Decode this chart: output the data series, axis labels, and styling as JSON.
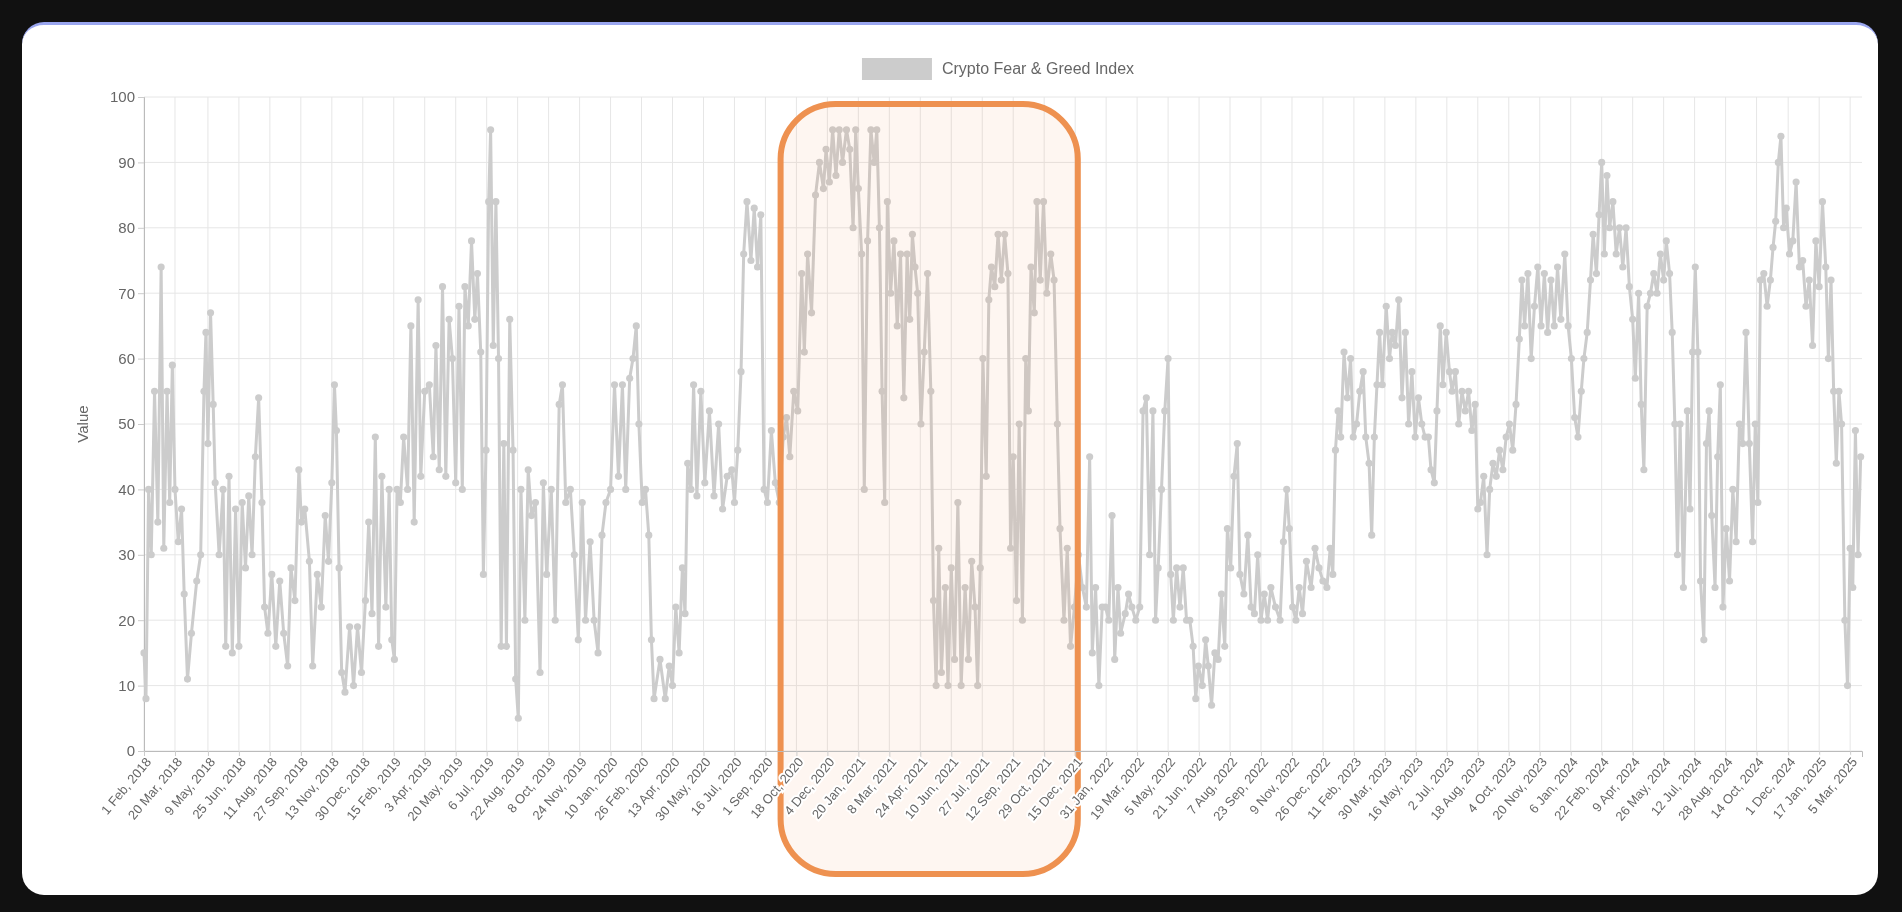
{
  "chart_data": {
    "type": "line",
    "ylabel": "Value",
    "legend": "top",
    "grid": true,
    "marker": "circle",
    "line_style": "solid",
    "xlim": [
      "2018-02-01",
      "2025-03-23"
    ],
    "bands": [
      {
        "axis": "x",
        "from": "2020-09-24",
        "to": "2021-12-19",
        "color": "#ee9150"
      }
    ],
    "ylim": [
      0,
      100
    ],
    "yticks": [
      0,
      10,
      20,
      30,
      40,
      50,
      60,
      70,
      80,
      90,
      100
    ],
    "xticks": [
      {
        "value": "2018-02-01",
        "label": "1 Feb, 2018"
      },
      {
        "value": "2018-03-20",
        "label": "20 Mar, 2018"
      },
      {
        "value": "2018-05-09",
        "label": "9 May, 2018"
      },
      {
        "value": "2018-06-25",
        "label": "25 Jun, 2018"
      },
      {
        "value": "2018-08-11",
        "label": "11 Aug, 2018"
      },
      {
        "value": "2018-09-27",
        "label": "27 Sep, 2018"
      },
      {
        "value": "2018-11-13",
        "label": "13 Nov, 2018"
      },
      {
        "value": "2018-12-30",
        "label": "30 Dec, 2018"
      },
      {
        "value": "2019-02-15",
        "label": "15 Feb, 2019"
      },
      {
        "value": "2019-04-03",
        "label": "3 Apr, 2019"
      },
      {
        "value": "2019-05-20",
        "label": "20 May, 2019"
      },
      {
        "value": "2019-07-06",
        "label": "6 Jul, 2019"
      },
      {
        "value": "2019-08-22",
        "label": "22 Aug, 2019"
      },
      {
        "value": "2019-10-08",
        "label": "8 Oct, 2019"
      },
      {
        "value": "2019-11-24",
        "label": "24 Nov, 2019"
      },
      {
        "value": "2020-01-10",
        "label": "10 Jan, 2020"
      },
      {
        "value": "2020-02-26",
        "label": "26 Feb, 2020"
      },
      {
        "value": "2020-04-13",
        "label": "13 Apr, 2020"
      },
      {
        "value": "2020-05-30",
        "label": "30 May, 2020"
      },
      {
        "value": "2020-07-16",
        "label": "16 Jul, 2020"
      },
      {
        "value": "2020-09-01",
        "label": "1 Sep, 2020"
      },
      {
        "value": "2020-10-18",
        "label": "18 Oct, 2020"
      },
      {
        "value": "2020-12-04",
        "label": "4 Dec, 2020"
      },
      {
        "value": "2021-01-20",
        "label": "20 Jan, 2021"
      },
      {
        "value": "2021-03-08",
        "label": "8 Mar, 2021"
      },
      {
        "value": "2021-04-24",
        "label": "24 Apr, 2021"
      },
      {
        "value": "2021-06-10",
        "label": "10 Jun, 2021"
      },
      {
        "value": "2021-07-27",
        "label": "27 Jul, 2021"
      },
      {
        "value": "2021-09-12",
        "label": "12 Sep, 2021"
      },
      {
        "value": "2021-10-29",
        "label": "29 Oct, 2021"
      },
      {
        "value": "2021-12-15",
        "label": "15 Dec, 2021"
      },
      {
        "value": "2022-01-31",
        "label": "31 Jan, 2022"
      },
      {
        "value": "2022-03-19",
        "label": "19 Mar, 2022"
      },
      {
        "value": "2022-05-05",
        "label": "5 May, 2022"
      },
      {
        "value": "2022-06-21",
        "label": "21 Jun, 2022"
      },
      {
        "value": "2022-08-07",
        "label": "7 Aug, 2022"
      },
      {
        "value": "2022-09-23",
        "label": "23 Sep, 2022"
      },
      {
        "value": "2022-11-09",
        "label": "9 Nov, 2022"
      },
      {
        "value": "2022-12-26",
        "label": "26 Dec, 2022"
      },
      {
        "value": "2023-02-11",
        "label": "11 Feb, 2023"
      },
      {
        "value": "2023-03-30",
        "label": "30 Mar, 2023"
      },
      {
        "value": "2023-05-16",
        "label": "16 May, 2023"
      },
      {
        "value": "2023-07-02",
        "label": "2 Jul, 2023"
      },
      {
        "value": "2023-08-18",
        "label": "18 Aug, 2023"
      },
      {
        "value": "2023-10-04",
        "label": "4 Oct, 2023"
      },
      {
        "value": "2023-11-20",
        "label": "20 Nov, 2023"
      },
      {
        "value": "2024-01-06",
        "label": "6 Jan, 2024"
      },
      {
        "value": "2024-02-22",
        "label": "22 Feb, 2024"
      },
      {
        "value": "2024-04-09",
        "label": "9 Apr, 2024"
      },
      {
        "value": "2024-05-26",
        "label": "26 May, 2024"
      },
      {
        "value": "2024-07-12",
        "label": "12 Jul, 2024"
      },
      {
        "value": "2024-08-28",
        "label": "28 Aug, 2024"
      },
      {
        "value": "2024-10-14",
        "label": "14 Oct, 2024"
      },
      {
        "value": "2024-12-01",
        "label": "1 Dec, 2024"
      },
      {
        "value": "2025-01-17",
        "label": "17 Jan, 2025"
      },
      {
        "value": "2025-03-05",
        "label": "5 Mar, 2025"
      }
    ],
    "series": [
      {
        "name": "Crypto Fear & Greed Index",
        "color": "#cccccc",
        "x": [
          "2018-02-01",
          "2018-02-04",
          "2018-02-08",
          "2018-02-12",
          "2018-02-17",
          "2018-02-22",
          "2018-02-27",
          "2018-03-03",
          "2018-03-08",
          "2018-03-12",
          "2018-03-16",
          "2018-03-20",
          "2018-03-25",
          "2018-03-30",
          "2018-04-03",
          "2018-04-08",
          "2018-04-14",
          "2018-04-22",
          "2018-04-28",
          "2018-05-03",
          "2018-05-06",
          "2018-05-09",
          "2018-05-13",
          "2018-05-17",
          "2018-05-20",
          "2018-05-26",
          "2018-06-01",
          "2018-06-05",
          "2018-06-10",
          "2018-06-15",
          "2018-06-20",
          "2018-06-25",
          "2018-06-30",
          "2018-07-05",
          "2018-07-10",
          "2018-07-15",
          "2018-07-20",
          "2018-07-25",
          "2018-07-30",
          "2018-08-03",
          "2018-08-08",
          "2018-08-14",
          "2018-08-20",
          "2018-08-26",
          "2018-09-01",
          "2018-09-07",
          "2018-09-12",
          "2018-09-18",
          "2018-09-24",
          "2018-09-28",
          "2018-10-03",
          "2018-10-10",
          "2018-10-15",
          "2018-10-22",
          "2018-10-28",
          "2018-11-03",
          "2018-11-08",
          "2018-11-13",
          "2018-11-17",
          "2018-11-20",
          "2018-11-24",
          "2018-11-28",
          "2018-12-03",
          "2018-12-10",
          "2018-12-16",
          "2018-12-22",
          "2018-12-28",
          "2019-01-03",
          "2019-01-08",
          "2019-01-13",
          "2019-01-18",
          "2019-01-23",
          "2019-01-28",
          "2019-02-03",
          "2019-02-08",
          "2019-02-12",
          "2019-02-16",
          "2019-02-20",
          "2019-02-25",
          "2019-03-02",
          "2019-03-08",
          "2019-03-13",
          "2019-03-18",
          "2019-03-24",
          "2019-03-28",
          "2019-04-03",
          "2019-04-10",
          "2019-04-16",
          "2019-04-20",
          "2019-04-25",
          "2019-04-30",
          "2019-05-05",
          "2019-05-10",
          "2019-05-15",
          "2019-05-20",
          "2019-05-25",
          "2019-05-30",
          "2019-06-03",
          "2019-06-08",
          "2019-06-13",
          "2019-06-18",
          "2019-06-22",
          "2019-06-27",
          "2019-07-01",
          "2019-07-05",
          "2019-07-09",
          "2019-07-12",
          "2019-07-16",
          "2019-07-20",
          "2019-07-24",
          "2019-07-28",
          "2019-08-01",
          "2019-08-05",
          "2019-08-10",
          "2019-08-15",
          "2019-08-19",
          "2019-08-23",
          "2019-08-27",
          "2019-09-02",
          "2019-09-07",
          "2019-09-12",
          "2019-09-18",
          "2019-09-25",
          "2019-09-30",
          "2019-10-05",
          "2019-10-12",
          "2019-10-18",
          "2019-10-24",
          "2019-10-29",
          "2019-11-03",
          "2019-11-10",
          "2019-11-16",
          "2019-11-22",
          "2019-11-28",
          "2019-12-03",
          "2019-12-10",
          "2019-12-16",
          "2019-12-22",
          "2019-12-28",
          "2020-01-03",
          "2020-01-10",
          "2020-01-16",
          "2020-01-22",
          "2020-01-28",
          "2020-02-02",
          "2020-02-08",
          "2020-02-13",
          "2020-02-18",
          "2020-02-22",
          "2020-02-27",
          "2020-03-03",
          "2020-03-08",
          "2020-03-12",
          "2020-03-16",
          "2020-03-25",
          "2020-04-02",
          "2020-04-08",
          "2020-04-13",
          "2020-04-18",
          "2020-04-23",
          "2020-04-28",
          "2020-05-02",
          "2020-05-06",
          "2020-05-11",
          "2020-05-15",
          "2020-05-20",
          "2020-05-26",
          "2020-06-01",
          "2020-06-08",
          "2020-06-15",
          "2020-06-22",
          "2020-06-28",
          "2020-07-05",
          "2020-07-12",
          "2020-07-16",
          "2020-07-21",
          "2020-07-26",
          "2020-07-30",
          "2020-08-04",
          "2020-08-10",
          "2020-08-15",
          "2020-08-20",
          "2020-08-25",
          "2020-08-30",
          "2020-09-04",
          "2020-09-10",
          "2020-09-16",
          "2020-09-22",
          "2020-09-28",
          "2020-10-03",
          "2020-10-08",
          "2020-10-14",
          "2020-10-20",
          "2020-10-26",
          "2020-10-30",
          "2020-11-04",
          "2020-11-10",
          "2020-11-16",
          "2020-11-22",
          "2020-11-28",
          "2020-12-02",
          "2020-12-07",
          "2020-12-12",
          "2020-12-17",
          "2020-12-22",
          "2020-12-27",
          "2021-01-02",
          "2021-01-07",
          "2021-01-12",
          "2021-01-16",
          "2021-01-20",
          "2021-01-25",
          "2021-01-29",
          "2021-02-03",
          "2021-02-08",
          "2021-02-13",
          "2021-02-17",
          "2021-02-21",
          "2021-02-25",
          "2021-03-01",
          "2021-03-05",
          "2021-03-10",
          "2021-03-15",
          "2021-03-20",
          "2021-03-25",
          "2021-03-30",
          "2021-04-04",
          "2021-04-08",
          "2021-04-12",
          "2021-04-16",
          "2021-04-20",
          "2021-04-25",
          "2021-04-30",
          "2021-05-05",
          "2021-05-10",
          "2021-05-14",
          "2021-05-18",
          "2021-05-22",
          "2021-05-26",
          "2021-06-01",
          "2021-06-05",
          "2021-06-10",
          "2021-06-15",
          "2021-06-20",
          "2021-06-25",
          "2021-07-01",
          "2021-07-06",
          "2021-07-11",
          "2021-07-16",
          "2021-07-20",
          "2021-07-24",
          "2021-07-28",
          "2021-08-02",
          "2021-08-06",
          "2021-08-10",
          "2021-08-15",
          "2021-08-20",
          "2021-08-25",
          "2021-08-30",
          "2021-09-04",
          "2021-09-08",
          "2021-09-12",
          "2021-09-17",
          "2021-09-21",
          "2021-09-26",
          "2021-10-01",
          "2021-10-05",
          "2021-10-09",
          "2021-10-14",
          "2021-10-18",
          "2021-10-23",
          "2021-10-28",
          "2021-11-02",
          "2021-11-08",
          "2021-11-13",
          "2021-11-18",
          "2021-11-22",
          "2021-11-28",
          "2021-12-03",
          "2021-12-08",
          "2021-12-14",
          "2021-12-20",
          "2021-12-26",
          "2022-01-01",
          "2022-01-06",
          "2022-01-10",
          "2022-01-15",
          "2022-01-20",
          "2022-01-25",
          "2022-01-30",
          "2022-02-04",
          "2022-02-09",
          "2022-02-13",
          "2022-02-18",
          "2022-02-22",
          "2022-03-01",
          "2022-03-06",
          "2022-03-11",
          "2022-03-17",
          "2022-03-23",
          "2022-03-28",
          "2022-04-02",
          "2022-04-07",
          "2022-04-12",
          "2022-04-16",
          "2022-04-20",
          "2022-04-25",
          "2022-04-30",
          "2022-05-05",
          "2022-05-09",
          "2022-05-13",
          "2022-05-18",
          "2022-05-23",
          "2022-05-28",
          "2022-06-02",
          "2022-06-07",
          "2022-06-12",
          "2022-06-16",
          "2022-06-20",
          "2022-06-26",
          "2022-07-01",
          "2022-07-05",
          "2022-07-10",
          "2022-07-15",
          "2022-07-20",
          "2022-07-25",
          "2022-07-30",
          "2022-08-03",
          "2022-08-08",
          "2022-08-13",
          "2022-08-18",
          "2022-08-22",
          "2022-08-28",
          "2022-09-03",
          "2022-09-08",
          "2022-09-13",
          "2022-09-18",
          "2022-09-23",
          "2022-09-28",
          "2022-10-03",
          "2022-10-08",
          "2022-10-15",
          "2022-10-22",
          "2022-10-27",
          "2022-11-01",
          "2022-11-05",
          "2022-11-10",
          "2022-11-15",
          "2022-11-20",
          "2022-11-25",
          "2022-12-01",
          "2022-12-08",
          "2022-12-14",
          "2022-12-20",
          "2022-12-26",
          "2023-01-01",
          "2023-01-06",
          "2023-01-10",
          "2023-01-14",
          "2023-01-18",
          "2023-01-22",
          "2023-01-27",
          "2023-02-01",
          "2023-02-06",
          "2023-02-10",
          "2023-02-15",
          "2023-02-20",
          "2023-02-25",
          "2023-03-01",
          "2023-03-06",
          "2023-03-10",
          "2023-03-14",
          "2023-03-18",
          "2023-03-22",
          "2023-03-26",
          "2023-04-01",
          "2023-04-06",
          "2023-04-10",
          "2023-04-15",
          "2023-04-20",
          "2023-04-25",
          "2023-04-30",
          "2023-05-05",
          "2023-05-10",
          "2023-05-15",
          "2023-05-20",
          "2023-05-25",
          "2023-05-30",
          "2023-06-04",
          "2023-06-08",
          "2023-06-13",
          "2023-06-17",
          "2023-06-22",
          "2023-06-26",
          "2023-07-01",
          "2023-07-06",
          "2023-07-10",
          "2023-07-15",
          "2023-07-20",
          "2023-07-25",
          "2023-07-30",
          "2023-08-04",
          "2023-08-09",
          "2023-08-14",
          "2023-08-18",
          "2023-08-22",
          "2023-08-27",
          "2023-09-01",
          "2023-09-05",
          "2023-09-10",
          "2023-09-15",
          "2023-09-20",
          "2023-09-25",
          "2023-09-30",
          "2023-10-05",
          "2023-10-10",
          "2023-10-15",
          "2023-10-20",
          "2023-10-24",
          "2023-10-28",
          "2023-11-02",
          "2023-11-07",
          "2023-11-12",
          "2023-11-17",
          "2023-11-22",
          "2023-11-27",
          "2023-12-02",
          "2023-12-07",
          "2023-12-12",
          "2023-12-17",
          "2023-12-22",
          "2023-12-28",
          "2024-01-02",
          "2024-01-07",
          "2024-01-12",
          "2024-01-17",
          "2024-01-22",
          "2024-01-26",
          "2024-01-31",
          "2024-02-05",
          "2024-02-09",
          "2024-02-14",
          "2024-02-18",
          "2024-02-22",
          "2024-02-26",
          "2024-03-01",
          "2024-03-05",
          "2024-03-10",
          "2024-03-15",
          "2024-03-20",
          "2024-03-25",
          "2024-03-30",
          "2024-04-04",
          "2024-04-09",
          "2024-04-13",
          "2024-04-18",
          "2024-04-22",
          "2024-04-26",
          "2024-05-01",
          "2024-05-06",
          "2024-05-11",
          "2024-05-16",
          "2024-05-21",
          "2024-05-26",
          "2024-05-30",
          "2024-06-04",
          "2024-06-08",
          "2024-06-12",
          "2024-06-16",
          "2024-06-20",
          "2024-06-25",
          "2024-07-01",
          "2024-07-05",
          "2024-07-09",
          "2024-07-13",
          "2024-07-17",
          "2024-07-21",
          "2024-07-26",
          "2024-07-30",
          "2024-08-03",
          "2024-08-07",
          "2024-08-12",
          "2024-08-16",
          "2024-08-20",
          "2024-08-24",
          "2024-08-29",
          "2024-09-03",
          "2024-09-08",
          "2024-09-13",
          "2024-09-18",
          "2024-09-23",
          "2024-09-28",
          "2024-10-03",
          "2024-10-08",
          "2024-10-12",
          "2024-10-16",
          "2024-10-20",
          "2024-10-25",
          "2024-10-30",
          "2024-11-04",
          "2024-11-08",
          "2024-11-12",
          "2024-11-16",
          "2024-11-20",
          "2024-11-24",
          "2024-11-28",
          "2024-12-03",
          "2024-12-08",
          "2024-12-13",
          "2024-12-18",
          "2024-12-23",
          "2024-12-28",
          "2025-01-02",
          "2025-01-07",
          "2025-01-12",
          "2025-01-17",
          "2025-01-22",
          "2025-01-27",
          "2025-01-31",
          "2025-02-04",
          "2025-02-08",
          "2025-02-12",
          "2025-02-16",
          "2025-02-20",
          "2025-02-25",
          "2025-03-01",
          "2025-03-05",
          "2025-03-09",
          "2025-03-13",
          "2025-03-17",
          "2025-03-21"
        ],
        "values": [
          15,
          8,
          40,
          30,
          55,
          35,
          74,
          31,
          55,
          38,
          59,
          40,
          32,
          37,
          24,
          11,
          18,
          26,
          30,
          55,
          64,
          47,
          67,
          53,
          41,
          30,
          40,
          16,
          42,
          15,
          37,
          16,
          38,
          28,
          39,
          30,
          45,
          54,
          38,
          22,
          18,
          27,
          16,
          26,
          18,
          13,
          28,
          23,
          43,
          35,
          37,
          29,
          13,
          27,
          22,
          36,
          29,
          41,
          56,
          49,
          28,
          12,
          9,
          19,
          10,
          19,
          12,
          23,
          35,
          21,
          48,
          16,
          42,
          22,
          40,
          17,
          14,
          40,
          38,
          48,
          40,
          65,
          35,
          69,
          42,
          55,
          56,
          45,
          62,
          43,
          71,
          42,
          66,
          60,
          41,
          68,
          40,
          71,
          65,
          78,
          66,
          73,
          61,
          27,
          46,
          84,
          95,
          62,
          84,
          60,
          16,
          47,
          16,
          66,
          46,
          11,
          5,
          40,
          20,
          43,
          36,
          38,
          12,
          41,
          27,
          40,
          20,
          53,
          56,
          38,
          40,
          30,
          17,
          38,
          20,
          32,
          20,
          15,
          33,
          38,
          40,
          56,
          42,
          56,
          40,
          57,
          60,
          65,
          50,
          38,
          40,
          33,
          17,
          8,
          14,
          8,
          13,
          10,
          22,
          15,
          28,
          21,
          44,
          40,
          56,
          39,
          55,
          41,
          52,
          39,
          50,
          37,
          42,
          43,
          38,
          46,
          58,
          76,
          84,
          75,
          83,
          74,
          82,
          40,
          38,
          49,
          41,
          38,
          48,
          51,
          45,
          55,
          52,
          73,
          61,
          76,
          67,
          85,
          90,
          86,
          92,
          87,
          95,
          88,
          95,
          90,
          95,
          92,
          80,
          95,
          86,
          76,
          40,
          78,
          95,
          90,
          95,
          80,
          55,
          38,
          84,
          70,
          78,
          65,
          76,
          54,
          76,
          66,
          79,
          74,
          70,
          50,
          61,
          73,
          55,
          23,
          10,
          31,
          12,
          25,
          10,
          28,
          14,
          38,
          10,
          25,
          14,
          29,
          22,
          10,
          28,
          60,
          42,
          69,
          74,
          71,
          79,
          72,
          79,
          73,
          31,
          45,
          23,
          50,
          20,
          60,
          52,
          74,
          67,
          84,
          72,
          84,
          70,
          76,
          72,
          50,
          34,
          20,
          31,
          16,
          22,
          30,
          25,
          22,
          45,
          15,
          25,
          10,
          22,
          22,
          20,
          36,
          14,
          25,
          18,
          21,
          24,
          22,
          20,
          22,
          52,
          54,
          30,
          52,
          20,
          28,
          40,
          52,
          60,
          27,
          20,
          28,
          22,
          28,
          20,
          20,
          16,
          8,
          13,
          10,
          17,
          13,
          7,
          15,
          14,
          24,
          16,
          34,
          28,
          42,
          47,
          27,
          24,
          33,
          22,
          21,
          30,
          20,
          24,
          20,
          25,
          22,
          20,
          32,
          40,
          34,
          22,
          20,
          25,
          21,
          29,
          25,
          31,
          28,
          26,
          25,
          31,
          27,
          46,
          52,
          48,
          61,
          54,
          60,
          48,
          50,
          55,
          58,
          48,
          44,
          33,
          48,
          56,
          64,
          56,
          68,
          60,
          64,
          62,
          69,
          54,
          64,
          50,
          58,
          48,
          54,
          50,
          48,
          48,
          43,
          41,
          52,
          65,
          56,
          64,
          58,
          55,
          58,
          50,
          55,
          52,
          55,
          49,
          53,
          37,
          38,
          42,
          30,
          40,
          44,
          42,
          46,
          43,
          48,
          50,
          46,
          53,
          63,
          72,
          65,
          73,
          60,
          68,
          74,
          65,
          73,
          64,
          72,
          65,
          74,
          66,
          76,
          65,
          60,
          51,
          48,
          55,
          60,
          64,
          72,
          79,
          73,
          82,
          90,
          76,
          88,
          80,
          84,
          76,
          80,
          74,
          80,
          71,
          66,
          57,
          70,
          53,
          43,
          68,
          70,
          73,
          70,
          76,
          72,
          78,
          73,
          64,
          50,
          30,
          50,
          25,
          52,
          37,
          61,
          74,
          61,
          26,
          17,
          47,
          52,
          36,
          25,
          45,
          56,
          22,
          34,
          26,
          40,
          32,
          50,
          47,
          64,
          47,
          32,
          50,
          38,
          72,
          73,
          68,
          72,
          77,
          81,
          90,
          94,
          80,
          83,
          76,
          78,
          87,
          74,
          75,
          68,
          72,
          62,
          78,
          71,
          84,
          74,
          60,
          72,
          55,
          44,
          55,
          50,
          20,
          10,
          31,
          25,
          49,
          30,
          45
        ]
      }
    ]
  }
}
